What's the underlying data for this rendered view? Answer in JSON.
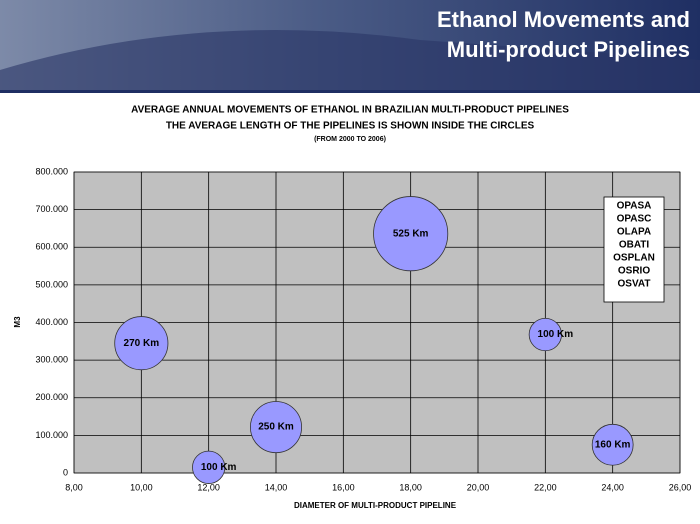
{
  "header": {
    "title_lines": [
      "Ethanol Movements and",
      "Multi-product Pipelines"
    ]
  },
  "chart_data": {
    "type": "bubble",
    "title": "AVERAGE ANNUAL MOVEMENTS OF ETHANOL IN BRAZILIAN MULTI-PRODUCT PIPELINES",
    "subtitle": "THE AVERAGE LENGTH OF THE PIPELINES IS SHOWN INSIDE THE CIRCLES",
    "note": "(FROM 2000 TO 2006)",
    "xlabel": "DIAMETER OF MULTI-PRODUCT PIPELINE",
    "ylabel": "M3",
    "series": [
      {
        "color": "#9999ff",
        "x": [
          10,
          12,
          14,
          18,
          22,
          24
        ],
        "values": [
          345000,
          15000,
          122000,
          636000,
          368000,
          75000
        ],
        "sizes": [
          270,
          100,
          250,
          525,
          100,
          160
        ],
        "size_labels": [
          "270 Km",
          "100 Km",
          "250 Km",
          "525 Km",
          "100 Km",
          "160 Km"
        ]
      }
    ],
    "xlim": [
      8,
      26
    ],
    "xticks": [
      {
        "value": 8,
        "label": "8,00"
      },
      {
        "value": 10,
        "label": "10,00"
      },
      {
        "value": 12,
        "label": "12,00"
      },
      {
        "value": 14,
        "label": "14,00"
      },
      {
        "value": 16,
        "label": "16,00"
      },
      {
        "value": 18,
        "label": "18,00"
      },
      {
        "value": 20,
        "label": "20,00"
      },
      {
        "value": 22,
        "label": "22,00"
      },
      {
        "value": 24,
        "label": "24,00"
      },
      {
        "value": 26,
        "label": "26,00"
      }
    ],
    "ylim": [
      0,
      800000
    ],
    "yticks": [
      0,
      {
        "value": 100000,
        "label": "100.000"
      },
      {
        "value": 200000,
        "label": "200.000"
      },
      {
        "value": 300000,
        "label": "300.000"
      },
      {
        "value": 400000,
        "label": "400.000"
      },
      {
        "value": 500000,
        "label": "500.000"
      },
      {
        "value": 600000,
        "label": "600.000"
      },
      {
        "value": 700000,
        "label": "700.000"
      },
      {
        "value": 800000,
        "label": "800.000"
      }
    ],
    "grid": true,
    "annotations": [
      "OPASA",
      "OPASC",
      "OLAPA",
      "OBATI",
      "OSPLAN",
      "OSRIO",
      "OSVAT"
    ]
  }
}
